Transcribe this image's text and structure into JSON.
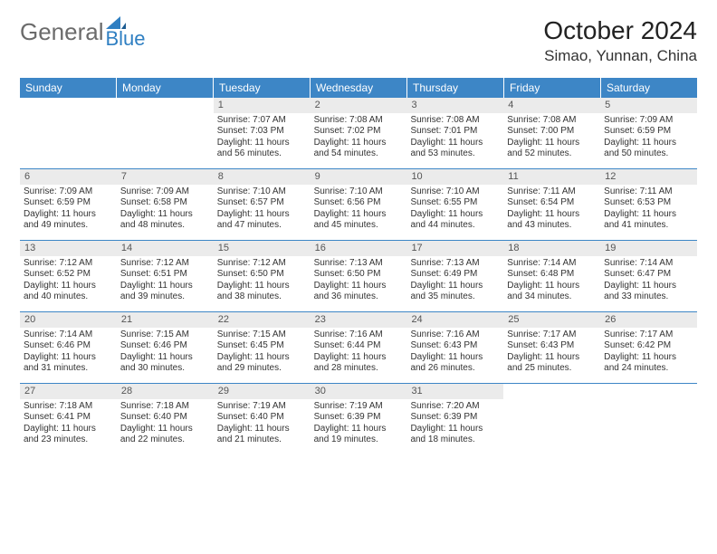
{
  "logo": {
    "general": "General",
    "blue": "Blue"
  },
  "title": "October 2024",
  "location": "Simao, Yunnan, China",
  "colors": {
    "header_bg": "#3d86c6",
    "header_text": "#ffffff",
    "daynum_bg": "#ebebeb",
    "text": "#333333",
    "logo_general": "#6b6b6b",
    "logo_blue": "#2f7fc2"
  },
  "weekdays": [
    "Sunday",
    "Monday",
    "Tuesday",
    "Wednesday",
    "Thursday",
    "Friday",
    "Saturday"
  ],
  "weeks": [
    [
      {
        "day": "",
        "sunrise": "",
        "sunset": "",
        "daylight": "",
        "empty": true
      },
      {
        "day": "",
        "sunrise": "",
        "sunset": "",
        "daylight": "",
        "empty": true
      },
      {
        "day": "1",
        "sunrise": "Sunrise: 7:07 AM",
        "sunset": "Sunset: 7:03 PM",
        "daylight": "Daylight: 11 hours and 56 minutes."
      },
      {
        "day": "2",
        "sunrise": "Sunrise: 7:08 AM",
        "sunset": "Sunset: 7:02 PM",
        "daylight": "Daylight: 11 hours and 54 minutes."
      },
      {
        "day": "3",
        "sunrise": "Sunrise: 7:08 AM",
        "sunset": "Sunset: 7:01 PM",
        "daylight": "Daylight: 11 hours and 53 minutes."
      },
      {
        "day": "4",
        "sunrise": "Sunrise: 7:08 AM",
        "sunset": "Sunset: 7:00 PM",
        "daylight": "Daylight: 11 hours and 52 minutes."
      },
      {
        "day": "5",
        "sunrise": "Sunrise: 7:09 AM",
        "sunset": "Sunset: 6:59 PM",
        "daylight": "Daylight: 11 hours and 50 minutes."
      }
    ],
    [
      {
        "day": "6",
        "sunrise": "Sunrise: 7:09 AM",
        "sunset": "Sunset: 6:59 PM",
        "daylight": "Daylight: 11 hours and 49 minutes."
      },
      {
        "day": "7",
        "sunrise": "Sunrise: 7:09 AM",
        "sunset": "Sunset: 6:58 PM",
        "daylight": "Daylight: 11 hours and 48 minutes."
      },
      {
        "day": "8",
        "sunrise": "Sunrise: 7:10 AM",
        "sunset": "Sunset: 6:57 PM",
        "daylight": "Daylight: 11 hours and 47 minutes."
      },
      {
        "day": "9",
        "sunrise": "Sunrise: 7:10 AM",
        "sunset": "Sunset: 6:56 PM",
        "daylight": "Daylight: 11 hours and 45 minutes."
      },
      {
        "day": "10",
        "sunrise": "Sunrise: 7:10 AM",
        "sunset": "Sunset: 6:55 PM",
        "daylight": "Daylight: 11 hours and 44 minutes."
      },
      {
        "day": "11",
        "sunrise": "Sunrise: 7:11 AM",
        "sunset": "Sunset: 6:54 PM",
        "daylight": "Daylight: 11 hours and 43 minutes."
      },
      {
        "day": "12",
        "sunrise": "Sunrise: 7:11 AM",
        "sunset": "Sunset: 6:53 PM",
        "daylight": "Daylight: 11 hours and 41 minutes."
      }
    ],
    [
      {
        "day": "13",
        "sunrise": "Sunrise: 7:12 AM",
        "sunset": "Sunset: 6:52 PM",
        "daylight": "Daylight: 11 hours and 40 minutes."
      },
      {
        "day": "14",
        "sunrise": "Sunrise: 7:12 AM",
        "sunset": "Sunset: 6:51 PM",
        "daylight": "Daylight: 11 hours and 39 minutes."
      },
      {
        "day": "15",
        "sunrise": "Sunrise: 7:12 AM",
        "sunset": "Sunset: 6:50 PM",
        "daylight": "Daylight: 11 hours and 38 minutes."
      },
      {
        "day": "16",
        "sunrise": "Sunrise: 7:13 AM",
        "sunset": "Sunset: 6:50 PM",
        "daylight": "Daylight: 11 hours and 36 minutes."
      },
      {
        "day": "17",
        "sunrise": "Sunrise: 7:13 AM",
        "sunset": "Sunset: 6:49 PM",
        "daylight": "Daylight: 11 hours and 35 minutes."
      },
      {
        "day": "18",
        "sunrise": "Sunrise: 7:14 AM",
        "sunset": "Sunset: 6:48 PM",
        "daylight": "Daylight: 11 hours and 34 minutes."
      },
      {
        "day": "19",
        "sunrise": "Sunrise: 7:14 AM",
        "sunset": "Sunset: 6:47 PM",
        "daylight": "Daylight: 11 hours and 33 minutes."
      }
    ],
    [
      {
        "day": "20",
        "sunrise": "Sunrise: 7:14 AM",
        "sunset": "Sunset: 6:46 PM",
        "daylight": "Daylight: 11 hours and 31 minutes."
      },
      {
        "day": "21",
        "sunrise": "Sunrise: 7:15 AM",
        "sunset": "Sunset: 6:46 PM",
        "daylight": "Daylight: 11 hours and 30 minutes."
      },
      {
        "day": "22",
        "sunrise": "Sunrise: 7:15 AM",
        "sunset": "Sunset: 6:45 PM",
        "daylight": "Daylight: 11 hours and 29 minutes."
      },
      {
        "day": "23",
        "sunrise": "Sunrise: 7:16 AM",
        "sunset": "Sunset: 6:44 PM",
        "daylight": "Daylight: 11 hours and 28 minutes."
      },
      {
        "day": "24",
        "sunrise": "Sunrise: 7:16 AM",
        "sunset": "Sunset: 6:43 PM",
        "daylight": "Daylight: 11 hours and 26 minutes."
      },
      {
        "day": "25",
        "sunrise": "Sunrise: 7:17 AM",
        "sunset": "Sunset: 6:43 PM",
        "daylight": "Daylight: 11 hours and 25 minutes."
      },
      {
        "day": "26",
        "sunrise": "Sunrise: 7:17 AM",
        "sunset": "Sunset: 6:42 PM",
        "daylight": "Daylight: 11 hours and 24 minutes."
      }
    ],
    [
      {
        "day": "27",
        "sunrise": "Sunrise: 7:18 AM",
        "sunset": "Sunset: 6:41 PM",
        "daylight": "Daylight: 11 hours and 23 minutes."
      },
      {
        "day": "28",
        "sunrise": "Sunrise: 7:18 AM",
        "sunset": "Sunset: 6:40 PM",
        "daylight": "Daylight: 11 hours and 22 minutes."
      },
      {
        "day": "29",
        "sunrise": "Sunrise: 7:19 AM",
        "sunset": "Sunset: 6:40 PM",
        "daylight": "Daylight: 11 hours and 21 minutes."
      },
      {
        "day": "30",
        "sunrise": "Sunrise: 7:19 AM",
        "sunset": "Sunset: 6:39 PM",
        "daylight": "Daylight: 11 hours and 19 minutes."
      },
      {
        "day": "31",
        "sunrise": "Sunrise: 7:20 AM",
        "sunset": "Sunset: 6:39 PM",
        "daylight": "Daylight: 11 hours and 18 minutes."
      },
      {
        "day": "",
        "sunrise": "",
        "sunset": "",
        "daylight": "",
        "empty": true
      },
      {
        "day": "",
        "sunrise": "",
        "sunset": "",
        "daylight": "",
        "empty": true
      }
    ]
  ]
}
